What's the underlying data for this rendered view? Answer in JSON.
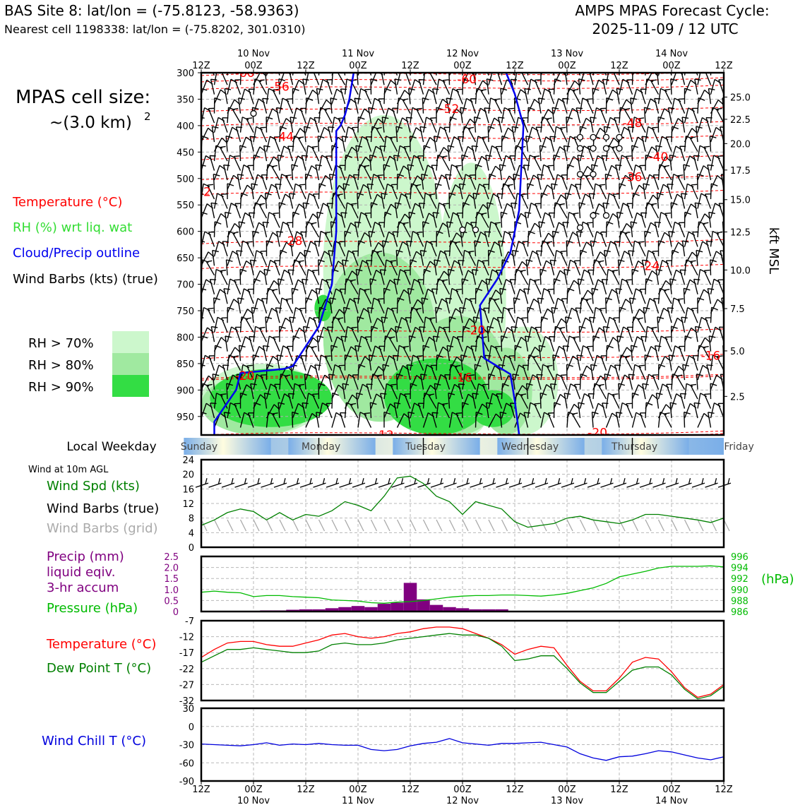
{
  "header": {
    "site_line": "BAS Site 8: lat/lon = (-75.8123, -58.9363)",
    "cell_line": "Nearest cell 1198338: lat/lon = (-75.8202, 301.0310)",
    "cycle_line1": "AMPS MPAS Forecast Cycle:",
    "cycle_line2": "2025-11-09 / 12 UTC"
  },
  "legend": {
    "cell_size_1": "MPAS cell size:",
    "cell_size_2": "~(3.0 km)",
    "cell_size_sup": "2",
    "temperature": "Temperature (°C)",
    "rh": "RH (%) wrt liq. wat",
    "cloud": "Cloud/Precip outline",
    "wind": "Wind Barbs (kts) (true)",
    "rh70": "RH > 70%",
    "rh80": "RH > 80%",
    "rh90": "RH > 90%"
  },
  "colors": {
    "temperature": "#ff0000",
    "rh_text": "#33dd33",
    "cloud": "#0000ee",
    "rh70": "#ccf7cc",
    "rh80": "#a0e9a0",
    "rh90": "#33dd44",
    "wind_spd": "#008000",
    "grid_barb": "#aaaaaa",
    "precip": "#800080",
    "pressure": "#00bb00",
    "dewpoint": "#008000",
    "windchill": "#0000dd"
  },
  "panel_labels": {
    "local_weekday": "Local Weekday",
    "wind_10m": "Wind at 10m AGL",
    "wind_spd": "Wind Spd (kts)",
    "barbs_true": "Wind Barbs (true)",
    "barbs_grid": "Wind Barbs (grid)",
    "precip_1": "Precip (mm)",
    "precip_2": "liquid eqiv.",
    "precip_3": "3-hr accum",
    "pressure": "Pressure (hPa)",
    "pressure_unit": "(hPa)",
    "temp": "Temperature (°C)",
    "dewpoint": "Dew Point T (°C)",
    "windchill": "Wind Chill T (°C)",
    "kft": "kft MSL"
  },
  "chart_data": [
    {
      "type": "heatmap",
      "x": {
        "tick_labels": [
          "12Z",
          "00Z",
          "12Z",
          "00Z",
          "12Z",
          "00Z",
          "12Z",
          "00Z",
          "12Z",
          "00Z",
          "12Z"
        ],
        "day_labels": [
          "10 Nov",
          "11 Nov",
          "12 Nov",
          "13 Nov",
          "14 Nov"
        ],
        "hours": [
          0,
          120
        ]
      },
      "y_pressure": {
        "ticks": [
          300,
          350,
          400,
          450,
          500,
          550,
          600,
          650,
          700,
          750,
          800,
          850,
          900,
          950
        ],
        "range": [
          300,
          985
        ]
      },
      "y_kft": {
        "ticks": [
          25.0,
          22.5,
          20.0,
          17.5,
          15.0,
          12.5,
          10.0,
          7.5,
          5.0,
          2.5
        ],
        "tick_labels": [
          "25.0",
          "22.5",
          "20.0",
          "17.5",
          "15.0",
          "12.5",
          "10.0",
          "7.5",
          "5.0",
          "2.5"
        ],
        "pressure_at_tick": [
          346,
          388,
          434,
          484,
          540,
          601,
          673,
          746,
          826,
          912
        ]
      },
      "temperature_contour_labels": [
        {
          "text": "-60",
          "t": 10,
          "p": 300
        },
        {
          "text": "-56",
          "t": 18,
          "p": 326
        },
        {
          "text": "-60",
          "t": 61,
          "p": 312
        },
        {
          "text": "-52",
          "t": 57,
          "p": 368
        },
        {
          "text": "-48",
          "t": 99,
          "p": 395
        },
        {
          "text": "-44",
          "t": 19,
          "p": 421
        },
        {
          "text": "-40",
          "t": 105,
          "p": 459
        },
        {
          "text": "-36",
          "t": 99,
          "p": 497
        },
        {
          "text": "-32",
          "t": 0,
          "p": 525
        },
        {
          "text": "-28",
          "t": 21,
          "p": 618
        },
        {
          "text": "-24",
          "t": 103,
          "p": 665
        },
        {
          "text": "-20",
          "t": 63,
          "p": 787
        },
        {
          "text": "-16",
          "t": 117,
          "p": 835
        },
        {
          "text": "-16",
          "t": 60,
          "p": 876
        },
        {
          "text": "-20",
          "t": 10,
          "p": 873
        },
        {
          "text": "-12",
          "t": 42,
          "p": 985
        },
        {
          "text": "-20",
          "t": 91,
          "p": 980
        }
      ],
      "rh_above_70": [
        {
          "t": [
            28,
            56
          ],
          "p": [
            960,
            380
          ]
        },
        {
          "t": [
            54,
            70
          ],
          "p": [
            985,
            470
          ]
        },
        {
          "t": [
            0,
            28
          ],
          "p": [
            985,
            850
          ]
        },
        {
          "t": [
            66,
            82
          ],
          "p": [
            985,
            780
          ]
        }
      ],
      "rh_above_80": [
        {
          "t": [
            28,
            54
          ],
          "p": [
            960,
            640
          ]
        },
        {
          "t": [
            0,
            26
          ],
          "p": [
            985,
            870
          ]
        },
        {
          "t": [
            48,
            70
          ],
          "p": [
            985,
            760
          ]
        },
        {
          "t": [
            64,
            76
          ],
          "p": [
            985,
            820
          ]
        }
      ],
      "rh_above_90": [
        {
          "t": [
            2,
            30
          ],
          "p": [
            970,
            860
          ]
        },
        {
          "t": [
            42,
            66
          ],
          "p": [
            985,
            840
          ]
        },
        {
          "t": [
            26,
            30
          ],
          "p": [
            770,
            720
          ]
        },
        {
          "t": [
            62,
            72
          ],
          "p": [
            970,
            900
          ]
        }
      ],
      "cloud_outline": [
        {
          "t": [
            35,
            34,
            33,
            32,
            31,
            31,
            30,
            27,
            21,
            19,
            9,
            8,
            3,
            3
          ],
          "p": [
            300,
            350,
            380,
            400,
            410,
            600,
            700,
            780,
            855,
            860,
            868,
            900,
            960,
            985
          ]
        },
        {
          "t": [
            70,
            72,
            74,
            73,
            71,
            68,
            64,
            65,
            71,
            72,
            73
          ],
          "p": [
            300,
            340,
            400,
            560,
            640,
            690,
            740,
            840,
            870,
            920,
            985
          ]
        }
      ],
      "icing_circles": [
        {
          "t": 12,
          "p": 377
        },
        {
          "t": 87,
          "p": 422
        },
        {
          "t": 90,
          "p": 422
        },
        {
          "t": 93,
          "p": 422
        },
        {
          "t": 96,
          "p": 422
        },
        {
          "t": 87,
          "p": 443
        },
        {
          "t": 90,
          "p": 443
        },
        {
          "t": 93,
          "p": 443
        },
        {
          "t": 96,
          "p": 443
        },
        {
          "t": 87,
          "p": 492
        },
        {
          "t": 90,
          "p": 492
        },
        {
          "t": 90,
          "p": 570
        },
        {
          "t": 93,
          "p": 570
        },
        {
          "t": 87,
          "p": 593
        },
        {
          "t": 60,
          "p": 597
        },
        {
          "t": 63,
          "p": 597
        }
      ],
      "wind_barb_spacing_hours": 3
    },
    {
      "type": "line",
      "days": [
        "Sunday",
        "Monday",
        "Tuesday",
        "Wednesday",
        "Thursday",
        "Friday"
      ],
      "day_noon_hours": [
        -0.5,
        27.5,
        51.5,
        75.5,
        99.5,
        123.5
      ]
    },
    {
      "type": "line",
      "ylabel": "",
      "ylim": [
        0,
        24
      ],
      "yticks": [
        0,
        4,
        8,
        12,
        16,
        20,
        24
      ],
      "x": [
        0,
        3,
        6,
        9,
        12,
        15,
        18,
        21,
        24,
        27,
        30,
        33,
        36,
        39,
        42,
        45,
        48,
        51,
        54,
        57,
        60,
        63,
        66,
        69,
        72,
        75,
        78,
        81,
        84,
        87,
        90,
        93,
        96,
        99,
        102,
        105,
        108,
        111,
        114,
        117,
        120
      ],
      "series": [
        {
          "name": "Wind Spd (kts)",
          "values": [
            6,
            7.5,
            9.5,
            10.5,
            9.8,
            7.5,
            9.5,
            7.5,
            9,
            8.5,
            10,
            12.5,
            11.5,
            10,
            14,
            19,
            19.5,
            17.5,
            14,
            12.5,
            9,
            12.5,
            11.5,
            10.5,
            7,
            5.5,
            6,
            6.5,
            8,
            8.5,
            7.5,
            7,
            6.5,
            7.5,
            9,
            9,
            8.5,
            8,
            7.5,
            6.8,
            8
          ]
        }
      ],
      "barbs_true_speeds": [
        20,
        20,
        20,
        20,
        20,
        20,
        20,
        20,
        20,
        20,
        20,
        20,
        20,
        20,
        20,
        20,
        20,
        20,
        20,
        20,
        20,
        20,
        20,
        20,
        20,
        10,
        10,
        10,
        10,
        10,
        10,
        10,
        10,
        10,
        10,
        10,
        10,
        10,
        10,
        10,
        10
      ],
      "barbs_grid_speeds": [
        8,
        8,
        8,
        8,
        8,
        8,
        8,
        8,
        8,
        8,
        8,
        8,
        8,
        8,
        8,
        8,
        8,
        8,
        8,
        8,
        8,
        8,
        8,
        8,
        8,
        8,
        8,
        8,
        8,
        8,
        8,
        8,
        8,
        8,
        8,
        8,
        8,
        8,
        8,
        8,
        8
      ]
    },
    {
      "type": "bar",
      "ylim": [
        0,
        2.5
      ],
      "yticks": [
        0,
        0.5,
        1.0,
        1.5,
        2.0,
        2.5
      ],
      "ytick_labels": [
        "0",
        "0.5",
        "1.0",
        "1.5",
        "2.0",
        "2.5"
      ],
      "precip_x": [
        15,
        18,
        21,
        24,
        27,
        30,
        33,
        36,
        39,
        42,
        45,
        48,
        51,
        54,
        57,
        60,
        63,
        66,
        69
      ],
      "precip_mm": [
        0.05,
        0.05,
        0.08,
        0.1,
        0.1,
        0.15,
        0.2,
        0.25,
        0.2,
        0.35,
        0.4,
        1.3,
        0.55,
        0.3,
        0.2,
        0.15,
        0.1,
        0.1,
        0.1
      ],
      "pressure": {
        "name": "Pressure (hPa)",
        "ylim": [
          986,
          996
        ],
        "yticks": [
          986,
          988,
          990,
          992,
          994,
          996
        ],
        "x": [
          0,
          3,
          6,
          9,
          12,
          15,
          18,
          21,
          24,
          27,
          30,
          33,
          36,
          39,
          42,
          45,
          48,
          51,
          54,
          57,
          60,
          63,
          66,
          69,
          72,
          75,
          78,
          81,
          84,
          87,
          90,
          93,
          96,
          99,
          102,
          105,
          108,
          111,
          114,
          117,
          120
        ],
        "values": [
          989.5,
          989.7,
          989.5,
          989.4,
          988.7,
          988.9,
          988.9,
          988.7,
          988.6,
          988.5,
          988.1,
          988,
          987.9,
          987.6,
          987.5,
          987.7,
          987.8,
          988,
          988.3,
          988.6,
          988.8,
          988.9,
          988.9,
          989,
          989,
          988.9,
          988.8,
          989,
          989.3,
          989.8,
          990.3,
          991.1,
          992.3,
          992.8,
          993.3,
          993.9,
          994.2,
          994.2,
          994.2,
          994.3,
          994.1
        ]
      }
    },
    {
      "type": "line",
      "ylim": [
        -32,
        -7
      ],
      "yticks": [
        -7,
        -12,
        -17,
        -22,
        -27,
        -32
      ],
      "x": [
        0,
        3,
        6,
        9,
        12,
        15,
        18,
        21,
        24,
        27,
        30,
        33,
        36,
        39,
        42,
        45,
        48,
        51,
        54,
        57,
        60,
        63,
        66,
        69,
        72,
        75,
        78,
        81,
        84,
        87,
        90,
        93,
        96,
        99,
        102,
        105,
        108,
        111,
        114,
        117,
        120
      ],
      "series": [
        {
          "name": "Temperature (°C)",
          "values": [
            -18.5,
            -16,
            -14,
            -13.5,
            -13.5,
            -14.5,
            -15,
            -15,
            -14,
            -13,
            -11.5,
            -11,
            -12,
            -12.5,
            -12,
            -11,
            -10.5,
            -9.5,
            -9,
            -9,
            -9.5,
            -11,
            -12.5,
            -14.5,
            -17.5,
            -16,
            -15,
            -15.5,
            -21,
            -26,
            -29,
            -29,
            -25,
            -20,
            -18.5,
            -19,
            -23,
            -28,
            -31,
            -30,
            -27
          ]
        },
        {
          "name": "Dew Point T (°C)",
          "values": [
            -20,
            -18,
            -16,
            -16,
            -15.5,
            -16,
            -16.5,
            -17,
            -17,
            -16.5,
            -14.5,
            -14,
            -14.5,
            -14.5,
            -14,
            -13,
            -12.5,
            -12,
            -11.5,
            -11,
            -11.5,
            -11.5,
            -12.5,
            -15,
            -19.5,
            -19,
            -18,
            -18,
            -22,
            -26.5,
            -29.5,
            -29.5,
            -26,
            -22.5,
            -21.5,
            -21.5,
            -24,
            -28.5,
            -31.5,
            -30.5,
            -27.5
          ]
        }
      ]
    },
    {
      "type": "line",
      "ylim": [
        -90,
        30
      ],
      "yticks": [
        30,
        0,
        -30,
        -60,
        -90
      ],
      "x": [
        0,
        3,
        6,
        9,
        12,
        15,
        18,
        21,
        24,
        27,
        30,
        33,
        36,
        39,
        42,
        45,
        48,
        51,
        54,
        57,
        60,
        63,
        66,
        69,
        72,
        75,
        78,
        81,
        84,
        87,
        90,
        93,
        96,
        99,
        102,
        105,
        108,
        111,
        114,
        117,
        120
      ],
      "series": [
        {
          "name": "Wind Chill T (°C)",
          "values": [
            -29,
            -30,
            -31,
            -32,
            -30,
            -27,
            -31,
            -29,
            -30,
            -28,
            -30,
            -31,
            -31,
            -38,
            -40,
            -38,
            -32,
            -28,
            -26,
            -20,
            -27,
            -29,
            -31,
            -28,
            -28,
            -27,
            -26,
            -30,
            -34,
            -45,
            -52,
            -56,
            -50,
            -49,
            -45,
            -40,
            -42,
            -47,
            -52,
            -55,
            -50
          ]
        }
      ]
    }
  ]
}
